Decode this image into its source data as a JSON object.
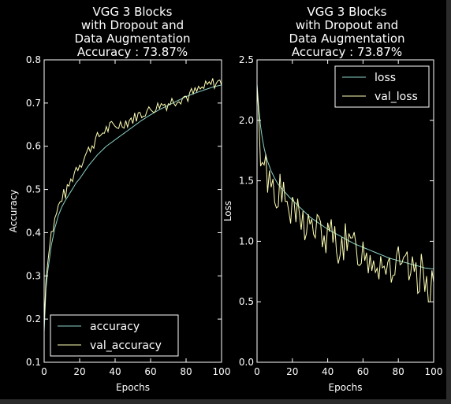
{
  "chart_data": [
    {
      "type": "line",
      "title": [
        "VGG 3 Blocks",
        "with Dropout and",
        "Data Augmentation",
        "Accuracy : 73.87%"
      ],
      "xlabel": "Epochs",
      "ylabel": "Accuracy",
      "xlim": [
        0,
        100
      ],
      "ylim": [
        0.1,
        0.8
      ],
      "xticks": [
        "0",
        "20",
        "40",
        "60",
        "80",
        "100"
      ],
      "yticks": [
        "0.1",
        "0.2",
        "0.3",
        "0.4",
        "0.5",
        "0.6",
        "0.7",
        "0.8"
      ],
      "legend_position": "bottom-left",
      "grid": false,
      "series": [
        {
          "name": "accuracy",
          "color": "#8dd3c7",
          "kind": "smooth",
          "x": [
            0,
            1,
            2,
            3,
            4,
            5,
            6,
            8,
            10,
            12,
            15,
            18,
            20,
            25,
            30,
            35,
            40,
            45,
            50,
            55,
            60,
            65,
            70,
            75,
            80,
            85,
            90,
            95,
            100
          ],
          "values": [
            0.17,
            0.27,
            0.31,
            0.34,
            0.37,
            0.39,
            0.41,
            0.44,
            0.46,
            0.475,
            0.495,
            0.515,
            0.525,
            0.555,
            0.58,
            0.6,
            0.615,
            0.63,
            0.645,
            0.66,
            0.673,
            0.685,
            0.695,
            0.705,
            0.715,
            0.723,
            0.73,
            0.737,
            0.742
          ]
        },
        {
          "name": "val_accuracy",
          "color": "#ffffb3",
          "kind": "noisy",
          "x": [
            0,
            1,
            2,
            3,
            4,
            5,
            6,
            8,
            10,
            12,
            15,
            18,
            20,
            25,
            30,
            35,
            40,
            45,
            50,
            55,
            60,
            65,
            70,
            75,
            80,
            85,
            90,
            95,
            100
          ],
          "values": [
            0.19,
            0.3,
            0.33,
            0.38,
            0.4,
            0.41,
            0.43,
            0.46,
            0.48,
            0.49,
            0.52,
            0.55,
            0.56,
            0.59,
            0.62,
            0.64,
            0.645,
            0.655,
            0.665,
            0.675,
            0.685,
            0.695,
            0.7,
            0.71,
            0.715,
            0.725,
            0.735,
            0.745,
            0.75
          ],
          "noise": 0.018,
          "seed": 7
        }
      ]
    },
    {
      "type": "line",
      "title": [
        "VGG 3 Blocks",
        "with Dropout and",
        "Data Augmentation",
        "Accuracy : 73.87%"
      ],
      "xlabel": "Epochs",
      "ylabel": "Loss",
      "xlim": [
        0,
        100
      ],
      "ylim": [
        0.0,
        2.5
      ],
      "xticks": [
        "0",
        "20",
        "40",
        "60",
        "80",
        "100"
      ],
      "yticks": [
        "0.0",
        "0.5",
        "1.0",
        "1.5",
        "2.0",
        "2.5"
      ],
      "legend_position": "top-right",
      "grid": false,
      "series": [
        {
          "name": "loss",
          "color": "#8dd3c7",
          "kind": "smooth",
          "x": [
            0,
            1,
            2,
            3,
            4,
            5,
            6,
            8,
            10,
            12,
            15,
            18,
            20,
            25,
            30,
            35,
            40,
            45,
            50,
            55,
            60,
            65,
            70,
            75,
            80,
            85,
            90,
            95,
            100
          ],
          "values": [
            2.3,
            2.1,
            1.95,
            1.85,
            1.77,
            1.71,
            1.66,
            1.58,
            1.52,
            1.47,
            1.42,
            1.37,
            1.34,
            1.27,
            1.2,
            1.15,
            1.1,
            1.06,
            1.02,
            0.98,
            0.95,
            0.92,
            0.89,
            0.86,
            0.84,
            0.82,
            0.8,
            0.78,
            0.77
          ]
        },
        {
          "name": "val_loss",
          "color": "#ffffb3",
          "kind": "noisy",
          "x": [
            0,
            1,
            2,
            3,
            4,
            5,
            6,
            8,
            10,
            12,
            15,
            18,
            20,
            25,
            30,
            35,
            40,
            45,
            50,
            55,
            60,
            65,
            70,
            75,
            80,
            85,
            90,
            95,
            100
          ],
          "values": [
            2.2,
            1.9,
            1.78,
            1.72,
            1.66,
            1.6,
            1.56,
            1.5,
            1.44,
            1.4,
            1.35,
            1.28,
            1.24,
            1.17,
            1.12,
            1.08,
            1.03,
            1.0,
            0.97,
            0.93,
            0.9,
            0.87,
            0.84,
            0.81,
            0.78,
            0.75,
            0.73,
            0.7,
            0.66
          ],
          "noise": 0.22,
          "seed": 13
        }
      ]
    }
  ]
}
